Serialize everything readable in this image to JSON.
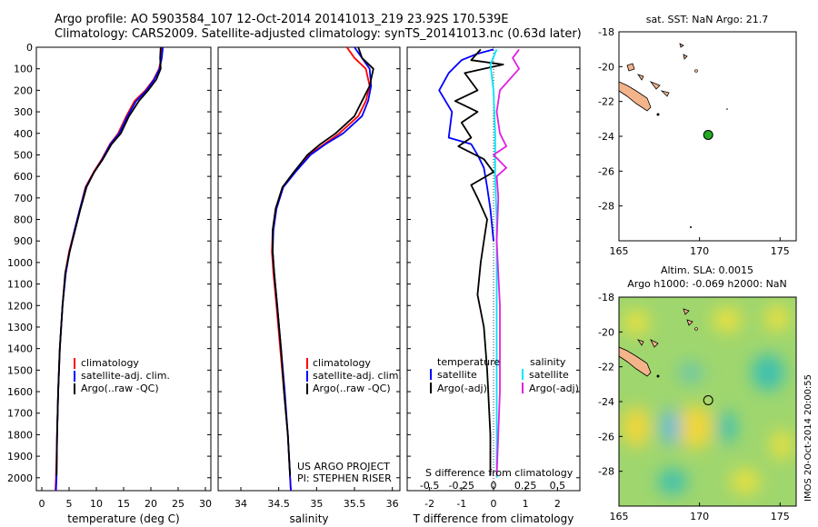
{
  "header": {
    "line1": "Argo profile: AO 5903584_107 12-Oct-2014 20141013_219 23.92S 170.539E",
    "line2": "Climatology: CARS2009. Satellite-adjusted climatology: synTS_20141013.nc (0.63d later)"
  },
  "colors": {
    "climatology": "#ff0000",
    "satellite": "#0000ff",
    "argo": "#000000",
    "sat_salinity": "#00e5ff",
    "argo_salinity": "#e020e0",
    "land": "#f4b48a"
  },
  "chart_data": [
    {
      "type": "line",
      "xlabel": "temperature (deg C)",
      "ylabel": "",
      "xlim": [
        -1,
        31
      ],
      "ylim": [
        2060,
        0
      ],
      "xticks": [
        0,
        5,
        10,
        15,
        20,
        25,
        30
      ],
      "yticks": [
        0,
        100,
        200,
        300,
        400,
        500,
        600,
        700,
        800,
        900,
        1000,
        1100,
        1200,
        1300,
        1400,
        1500,
        1600,
        1700,
        1800,
        1900,
        2000
      ],
      "legend": [
        "climatology",
        "satellite-adj. clim.",
        "Argo(..raw -QC)"
      ],
      "series": [
        {
          "name": "climatology",
          "color": "#ff0000",
          "points": [
            [
              22,
              0
            ],
            [
              21.9,
              50
            ],
            [
              21.5,
              100
            ],
            [
              20.5,
              150
            ],
            [
              19,
              200
            ],
            [
              17,
              250
            ],
            [
              15.5,
              320
            ],
            [
              14,
              400
            ],
            [
              12.5,
              450
            ],
            [
              11,
              520
            ],
            [
              9.5,
              580
            ],
            [
              8,
              650
            ],
            [
              7,
              750
            ],
            [
              6,
              850
            ],
            [
              5,
              950
            ],
            [
              4.3,
              1050
            ],
            [
              3.8,
              1200
            ],
            [
              3.3,
              1400
            ],
            [
              3,
              1600
            ],
            [
              2.8,
              1800
            ],
            [
              2.6,
              2000
            ],
            [
              2.5,
              2060
            ]
          ]
        },
        {
          "name": "satellite-adj. clim.",
          "color": "#0000ff",
          "points": [
            [
              22.2,
              0
            ],
            [
              22,
              50
            ],
            [
              21.6,
              100
            ],
            [
              20.6,
              150
            ],
            [
              19.2,
              200
            ],
            [
              17.3,
              250
            ],
            [
              15.7,
              320
            ],
            [
              14.2,
              400
            ],
            [
              12.6,
              450
            ],
            [
              11.1,
              520
            ],
            [
              9.6,
              580
            ],
            [
              8.1,
              650
            ],
            [
              7,
              750
            ],
            [
              6,
              850
            ],
            [
              5.1,
              950
            ],
            [
              4.4,
              1050
            ],
            [
              3.8,
              1200
            ],
            [
              3.3,
              1400
            ],
            [
              3,
              1600
            ],
            [
              2.8,
              1800
            ],
            [
              2.7,
              2000
            ],
            [
              2.6,
              2060
            ]
          ]
        },
        {
          "name": "Argo(..raw -QC)",
          "color": "#000000",
          "points": [
            [
              21.8,
              0
            ],
            [
              21.7,
              50
            ],
            [
              21.8,
              100
            ],
            [
              21,
              150
            ],
            [
              19.5,
              200
            ],
            [
              17.8,
              250
            ],
            [
              16,
              320
            ],
            [
              14.5,
              400
            ],
            [
              12.8,
              450
            ],
            [
              11.2,
              520
            ],
            [
              9.6,
              580
            ],
            [
              8.2,
              650
            ],
            [
              7.1,
              750
            ],
            [
              6.1,
              850
            ],
            [
              5.1,
              950
            ],
            [
              4.3,
              1050
            ],
            [
              3.8,
              1200
            ],
            [
              3.3,
              1400
            ],
            [
              3,
              1600
            ],
            [
              2.8,
              1800
            ],
            [
              2.7,
              1990
            ]
          ]
        }
      ]
    },
    {
      "type": "line",
      "xlabel": "salinity",
      "ylabel": "",
      "xlim": [
        33.7,
        36.1
      ],
      "ylim": [
        2060,
        0
      ],
      "xticks": [
        34,
        34.5,
        35,
        35.5,
        36
      ],
      "legend": [
        "climatology",
        "satellite-adj. clim.",
        "Argo(..raw -QC)"
      ],
      "annotations": [
        "US ARGO PROJECT",
        "PI: STEPHEN RISER"
      ],
      "series": [
        {
          "name": "climatology",
          "color": "#ff0000",
          "points": [
            [
              35.4,
              0
            ],
            [
              35.5,
              50
            ],
            [
              35.65,
              100
            ],
            [
              35.7,
              180
            ],
            [
              35.65,
              250
            ],
            [
              35.55,
              320
            ],
            [
              35.3,
              400
            ],
            [
              35.1,
              450
            ],
            [
              34.9,
              500
            ],
            [
              34.7,
              580
            ],
            [
              34.55,
              650
            ],
            [
              34.46,
              750
            ],
            [
              34.42,
              850
            ],
            [
              34.41,
              950
            ],
            [
              34.43,
              1050
            ],
            [
              34.47,
              1200
            ],
            [
              34.52,
              1400
            ],
            [
              34.57,
              1600
            ],
            [
              34.62,
              1800
            ],
            [
              34.65,
              2000
            ],
            [
              34.66,
              2060
            ]
          ]
        },
        {
          "name": "satellite-adj. clim.",
          "color": "#0000ff",
          "points": [
            [
              35.5,
              0
            ],
            [
              35.6,
              50
            ],
            [
              35.7,
              100
            ],
            [
              35.72,
              180
            ],
            [
              35.68,
              250
            ],
            [
              35.6,
              320
            ],
            [
              35.35,
              400
            ],
            [
              35.12,
              450
            ],
            [
              34.92,
              500
            ],
            [
              34.72,
              580
            ],
            [
              34.56,
              650
            ],
            [
              34.47,
              750
            ],
            [
              34.43,
              850
            ],
            [
              34.42,
              950
            ],
            [
              34.44,
              1050
            ],
            [
              34.48,
              1200
            ],
            [
              34.53,
              1400
            ],
            [
              34.58,
              1600
            ],
            [
              34.62,
              1800
            ],
            [
              34.65,
              2000
            ],
            [
              34.66,
              2060
            ]
          ]
        },
        {
          "name": "Argo(..raw -QC)",
          "color": "#000000",
          "points": [
            [
              35.55,
              0
            ],
            [
              35.6,
              50
            ],
            [
              35.75,
              100
            ],
            [
              35.7,
              180
            ],
            [
              35.6,
              250
            ],
            [
              35.5,
              320
            ],
            [
              35.25,
              400
            ],
            [
              35.05,
              450
            ],
            [
              34.88,
              500
            ],
            [
              34.7,
              580
            ],
            [
              34.55,
              650
            ],
            [
              34.46,
              750
            ],
            [
              34.42,
              850
            ],
            [
              34.42,
              950
            ],
            [
              34.44,
              1050
            ],
            [
              34.48,
              1200
            ],
            [
              34.53,
              1400
            ],
            [
              34.57,
              1600
            ],
            [
              34.62,
              1800
            ],
            [
              34.65,
              1990
            ]
          ]
        }
      ]
    },
    {
      "type": "line",
      "xlabel": "T difference from climatology",
      "xlabel_top": "S difference from climatology",
      "xlim": [
        -2.7,
        2.7
      ],
      "ylim": [
        2060,
        0
      ],
      "xticks": [
        -2,
        -1,
        0,
        1,
        2
      ],
      "xticks_S": [
        "-0.5",
        "-0.25",
        "0",
        "0.25",
        "0.5"
      ],
      "legend_titles": [
        "temperature",
        "salinity"
      ],
      "legend": [
        "satellite",
        "Argo(-adj)",
        "satellite",
        "Argo(-adj)"
      ],
      "series": [
        {
          "name": "satellite",
          "color": "#0000ff",
          "points": [
            [
              0,
              10
            ],
            [
              -0.5,
              30
            ],
            [
              -1,
              60
            ],
            [
              -1.4,
              120
            ],
            [
              -1.7,
              200
            ],
            [
              -1.3,
              300
            ],
            [
              -1.4,
              420
            ],
            [
              -0.7,
              450
            ],
            [
              -0.5,
              500
            ],
            [
              -0.3,
              560
            ],
            [
              -0.2,
              650
            ],
            [
              -0.1,
              750
            ],
            [
              0,
              900
            ]
          ]
        },
        {
          "name": "Argo(-adj)",
          "color": "#000000",
          "points": [
            [
              -0.4,
              10
            ],
            [
              -0.7,
              60
            ],
            [
              0.3,
              80
            ],
            [
              -0.9,
              120
            ],
            [
              -0.5,
              200
            ],
            [
              -1.2,
              250
            ],
            [
              -0.5,
              300
            ],
            [
              -1,
              350
            ],
            [
              -0.7,
              420
            ],
            [
              -1.1,
              460
            ],
            [
              -0.3,
              520
            ],
            [
              0,
              580
            ],
            [
              -0.7,
              640
            ],
            [
              -0.5,
              700
            ],
            [
              -0.2,
              800
            ],
            [
              -0.3,
              900
            ],
            [
              -0.4,
              1000
            ],
            [
              -0.5,
              1150
            ],
            [
              -0.3,
              1300
            ],
            [
              -0.2,
              1500
            ],
            [
              -0.1,
              1800
            ],
            [
              -0.1,
              1990
            ]
          ]
        },
        {
          "name": "satellite ",
          "color": "#00e5ff",
          "points": [
            [
              0.1,
              10
            ],
            [
              -0.1,
              80
            ],
            [
              0,
              200
            ],
            [
              0.05,
              400
            ],
            [
              0.05,
              600
            ],
            [
              0.1,
              800
            ],
            [
              0.1,
              1200
            ],
            [
              0.1,
              1600
            ],
            [
              0.1,
              2000
            ]
          ]
        },
        {
          "name": "Argo(-adj) ",
          "color": "#e020e0",
          "points": [
            [
              0.8,
              10
            ],
            [
              0.6,
              50
            ],
            [
              0.8,
              100
            ],
            [
              0.2,
              200
            ],
            [
              0.1,
              300
            ],
            [
              0.2,
              400
            ],
            [
              0.4,
              460
            ],
            [
              0,
              500
            ],
            [
              0.4,
              560
            ],
            [
              0.1,
              600
            ],
            [
              0.15,
              700
            ],
            [
              0.1,
              900
            ],
            [
              0.2,
              1200
            ],
            [
              0.2,
              1600
            ],
            [
              0.1,
              1990
            ]
          ]
        }
      ]
    },
    {
      "type": "scatter",
      "title": "sat. SST: NaN Argo: 21.7",
      "xlim": [
        165,
        176
      ],
      "ylim": [
        -30,
        -18
      ],
      "xticks": [
        165,
        170,
        175
      ],
      "yticks": [
        -28,
        -26,
        -24,
        -22,
        -20,
        -18
      ],
      "marker": {
        "lon": 170.54,
        "lat": -23.92
      }
    },
    {
      "type": "heatmap",
      "title_line1": "Altim. SLA: 0.0015",
      "title_line2": "Argo h1000: -0.069 h2000: NaN",
      "xlim": [
        165,
        176
      ],
      "ylim": [
        -30,
        -18
      ],
      "xticks": [
        165,
        170,
        175
      ],
      "yticks": [
        -28,
        -26,
        -24,
        -22,
        -20,
        -18
      ],
      "marker": {
        "lon": 170.54,
        "lat": -23.92
      },
      "side_label": "IMOS 20-Oct-2014 20:00:55"
    }
  ]
}
